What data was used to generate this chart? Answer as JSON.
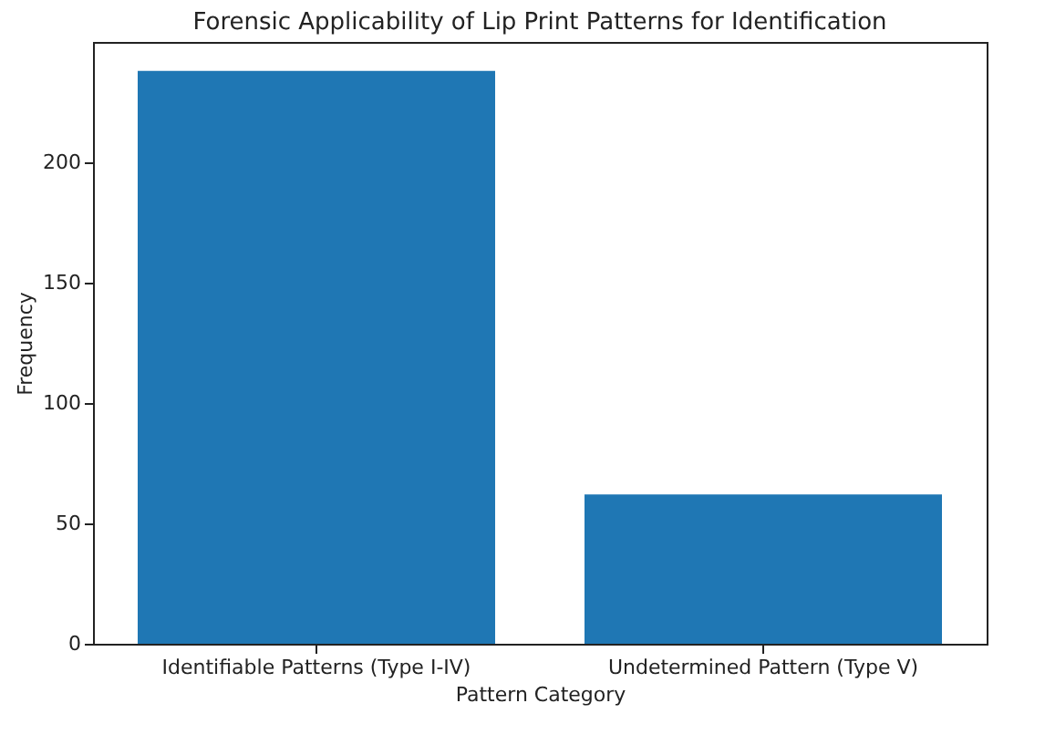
{
  "chart_data": {
    "type": "bar",
    "title": "Forensic Applicability of Lip Print Patterns for Identification",
    "xlabel": "Pattern Category",
    "ylabel": "Frequency",
    "categories": [
      "Identifiable Patterns (Type I-IV)",
      "Undetermined Pattern (Type V)"
    ],
    "values": [
      238,
      62
    ],
    "color": "#1f77b4",
    "ylim": [
      0,
      250
    ],
    "yticks": [
      0,
      50,
      100,
      150,
      200
    ],
    "grid": false
  }
}
